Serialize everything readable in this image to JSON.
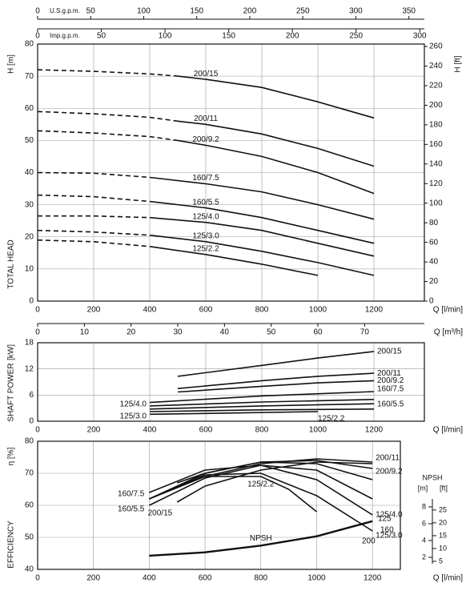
{
  "chart_data": [
    {
      "type": "line",
      "color": "#111",
      "grid": true,
      "y_unit_label": "H [m]",
      "ylabel": "TOTAL HEAD",
      "y2_unit_label": "H [ft]",
      "xlabel": "Q [l/min]",
      "xlim": [
        0,
        1380
      ],
      "xticks": [
        0,
        200,
        400,
        600,
        800,
        1000,
        1200
      ],
      "ylim": [
        0,
        80
      ],
      "yticks": [
        0,
        10,
        20,
        30,
        40,
        50,
        60,
        70,
        80
      ],
      "y2lim": [
        0,
        262.5
      ],
      "y2ticks": [
        0,
        20,
        40,
        60,
        80,
        100,
        120,
        140,
        160,
        180,
        200,
        220,
        240,
        260
      ],
      "top_axes": [
        {
          "label": "U.S.g.p.m.",
          "lim": [
            0,
            364.6
          ],
          "ticks": [
            0,
            50,
            100,
            150,
            200,
            250,
            300,
            350
          ]
        },
        {
          "label": "Imp.g.p.m.",
          "lim": [
            0,
            303.6
          ],
          "ticks": [
            0,
            50,
            100,
            150,
            200,
            250,
            300
          ]
        }
      ],
      "bottom_axis": {
        "label": "Q [m³/h]",
        "lim": [
          0,
          82.8
        ],
        "ticks": [
          0,
          10,
          20,
          30,
          40,
          50,
          60,
          70
        ]
      },
      "series": [
        {
          "name": "200/15",
          "dash_until": 500,
          "x": [
            0,
            200,
            400,
            500,
            600,
            800,
            1000,
            1200
          ],
          "values": [
            72,
            71.5,
            70.7,
            70,
            69,
            66.5,
            62,
            57
          ]
        },
        {
          "name": "200/11",
          "dash_until": 500,
          "x": [
            0,
            200,
            400,
            500,
            600,
            800,
            1000,
            1200
          ],
          "values": [
            59,
            58.3,
            57.2,
            56,
            55,
            52,
            47.5,
            42
          ]
        },
        {
          "name": "200/9.2",
          "dash_until": 500,
          "x": [
            0,
            200,
            400,
            500,
            600,
            800,
            1000,
            1200
          ],
          "values": [
            53,
            52.3,
            51.2,
            50,
            48.5,
            45,
            40,
            33.5
          ]
        },
        {
          "name": "160/7.5",
          "dash_until": 400,
          "x": [
            0,
            200,
            400,
            600,
            800,
            1000,
            1200
          ],
          "values": [
            40,
            39.8,
            38.5,
            36.5,
            34,
            30,
            25.5
          ]
        },
        {
          "name": "160/5.5",
          "dash_until": 400,
          "x": [
            0,
            200,
            400,
            600,
            800,
            1000,
            1200
          ],
          "values": [
            33,
            32.5,
            31,
            29,
            26,
            22,
            18
          ]
        },
        {
          "name": "125/4.0",
          "dash_until": 400,
          "x": [
            0,
            200,
            400,
            600,
            800,
            1000,
            1200
          ],
          "values": [
            26.5,
            26.5,
            26,
            24.5,
            22,
            18,
            14
          ]
        },
        {
          "name": "125/3.0",
          "dash_until": 400,
          "x": [
            0,
            200,
            400,
            600,
            800,
            1000,
            1200
          ],
          "values": [
            22,
            21.5,
            20.5,
            18.5,
            15.5,
            12,
            8
          ]
        },
        {
          "name": "125/2.2",
          "dash_until": 400,
          "x": [
            0,
            200,
            400,
            600,
            800,
            1000
          ],
          "values": [
            19,
            18.5,
            17,
            14.5,
            11.5,
            8
          ]
        }
      ]
    },
    {
      "type": "line",
      "color": "#111",
      "grid": true,
      "y_unit_label": "[kW]",
      "ylabel": "SHAFT POWER",
      "xlabel": "Q [l/min]",
      "xlim": [
        0,
        1380
      ],
      "xticks": [
        0,
        200,
        400,
        600,
        800,
        1000,
        1200
      ],
      "ylim": [
        0,
        18
      ],
      "yticks": [
        0,
        6,
        12,
        18
      ],
      "series": [
        {
          "name": "200/15",
          "x": [
            500,
            800,
            1000,
            1200
          ],
          "values": [
            10.3,
            12.8,
            14.5,
            16
          ]
        },
        {
          "name": "200/11",
          "x": [
            500,
            800,
            1000,
            1200
          ],
          "values": [
            7.5,
            9.3,
            10.3,
            11
          ]
        },
        {
          "name": "200/9.2",
          "x": [
            500,
            800,
            1000,
            1200
          ],
          "values": [
            6.7,
            8,
            8.8,
            9.3
          ]
        },
        {
          "name": "160/7.5",
          "x": [
            400,
            800,
            1200
          ],
          "values": [
            4.3,
            5.8,
            6.8
          ]
        },
        {
          "name": "160/5.5",
          "x": [
            400,
            800,
            1200
          ],
          "values": [
            3.5,
            4.4,
            5
          ]
        },
        {
          "name": "125/4.0",
          "x": [
            400,
            800,
            1200
          ],
          "values": [
            2.8,
            3.5,
            4
          ]
        },
        {
          "name": "125/3.0",
          "x": [
            400,
            800,
            1200
          ],
          "values": [
            2.2,
            2.6,
            2.8
          ]
        },
        {
          "name": "125/2.2",
          "x": [
            400,
            700,
            1000
          ],
          "values": [
            1.6,
            1.9,
            2.2
          ]
        }
      ]
    },
    {
      "type": "line",
      "color": "#111",
      "grid": true,
      "y_unit_label": "η [%]",
      "ylabel": "EFFICIENCY",
      "xlabel": "Q [l/min]",
      "xlim": [
        0,
        1300
      ],
      "xticks": [
        0,
        200,
        400,
        600,
        800,
        1000,
        1200
      ],
      "ylim": [
        40,
        80
      ],
      "yticks": [
        40,
        50,
        60,
        70,
        80
      ],
      "npsh_title": "NPSH",
      "y3label": "[m]",
      "y3lim": [
        0.57,
        15.8
      ],
      "y3ticks": [
        2,
        4,
        6,
        8
      ],
      "y4label": "[ft]",
      "y4lim": [
        1.87,
        51.8
      ],
      "y4ticks": [
        5,
        10,
        15,
        20,
        25
      ],
      "annotations": [
        "125",
        "160",
        "200"
      ],
      "series": [
        {
          "name": "200/15",
          "x": [
            500,
            600,
            800,
            1000,
            1200
          ],
          "values": [
            61,
            66,
            71,
            73.5,
            73
          ]
        },
        {
          "name": "200/11",
          "x": [
            500,
            600,
            800,
            1000,
            1200
          ],
          "values": [
            66,
            69,
            73,
            74.5,
            73.5
          ]
        },
        {
          "name": "200/9.2",
          "x": [
            500,
            600,
            800,
            1000,
            1200
          ],
          "values": [
            67,
            70,
            73.5,
            74,
            71.5
          ]
        },
        {
          "name": "160/7.5",
          "x": [
            400,
            600,
            800,
            1000,
            1200
          ],
          "values": [
            62,
            70,
            73.5,
            73,
            68
          ]
        },
        {
          "name": "160/5.5",
          "x": [
            400,
            600,
            800,
            1000,
            1200
          ],
          "values": [
            60,
            68.5,
            72.5,
            71,
            62
          ]
        },
        {
          "name": "125/4.0",
          "x": [
            400,
            600,
            800,
            1000,
            1200
          ],
          "values": [
            64,
            71,
            72.5,
            68,
            57
          ]
        },
        {
          "name": "125/3.0",
          "x": [
            400,
            600,
            800,
            1000,
            1200
          ],
          "values": [
            62,
            69.5,
            70,
            63,
            52
          ]
        },
        {
          "name": "125/2.2",
          "x": [
            400,
            600,
            800,
            900,
            1000
          ],
          "values": [
            62,
            69,
            69,
            65,
            58
          ]
        },
        {
          "name": "NPSH",
          "axis": "y3",
          "x": [
            400,
            600,
            800,
            1000,
            1200
          ],
          "values": [
            2.2,
            2.6,
            3.4,
            4.5,
            6.3
          ]
        }
      ]
    }
  ]
}
